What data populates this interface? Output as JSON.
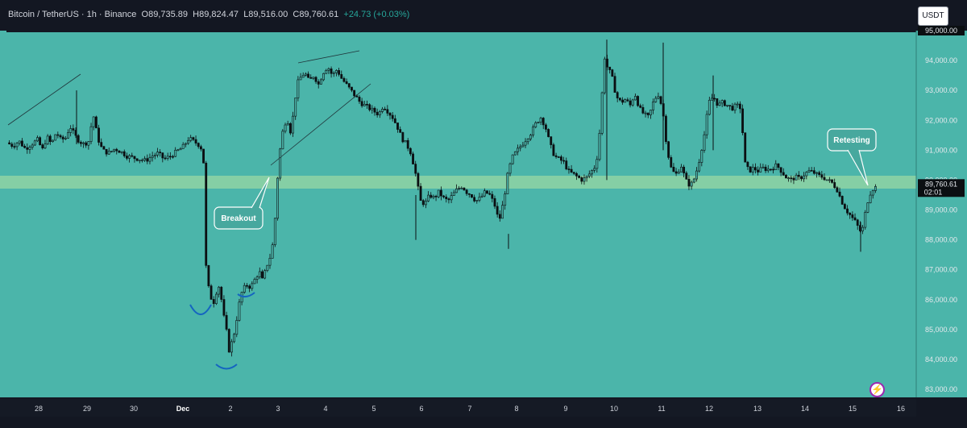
{
  "legend": {
    "symbol": "Bitcoin / TetherUS",
    "interval": "1h",
    "exchange": "Binance",
    "open": "O89,735.89",
    "high": "H89,824.47",
    "low": "L89,516.00",
    "close": "C89,760.61",
    "change": "+24.73 (+0.03%)"
  },
  "currency_button": "USDT",
  "price_axis": {
    "ticks": [
      "95,000.00",
      "94,000.00",
      "93,000.00",
      "92,000.00",
      "91,000.00",
      "90,000.00",
      "89,000.00",
      "88,000.00",
      "87,000.00",
      "86,000.00",
      "85,000.00",
      "84,000.00",
      "83,000.00"
    ],
    "current_price": "89,760.61",
    "countdown": "02:01",
    "highlight_tick": "95,000.00"
  },
  "time_axis": {
    "ticks": [
      "28",
      "29",
      "30",
      "Dec",
      "2",
      "3",
      "4",
      "5",
      "6",
      "7",
      "8",
      "9",
      "10",
      "11",
      "12",
      "13",
      "14",
      "15",
      "16"
    ]
  },
  "annotations": {
    "breakout": "Breakout",
    "retesting": "Retesting"
  },
  "flash_icon": "lightning-icon",
  "colors": {
    "background": "#4bb5aa",
    "zone": "#8fd3a5",
    "candle": "#000000",
    "curve": "#1565c0"
  },
  "chart_data": {
    "type": "candlestick",
    "title": "",
    "xlabel": "",
    "ylabel": "",
    "ylim": [
      82700,
      95000
    ],
    "grid": false,
    "x_labels": [
      "28",
      "29",
      "30",
      "Dec",
      "2",
      "3",
      "4",
      "5",
      "6",
      "7",
      "8",
      "9",
      "10",
      "11",
      "12",
      "13",
      "14",
      "15",
      "16"
    ],
    "support_zone": [
      89750,
      90200
    ],
    "close_path": [
      [
        0,
        91250
      ],
      [
        4,
        91150
      ],
      [
        8,
        91300
      ],
      [
        12,
        91050
      ],
      [
        16,
        91200
      ],
      [
        20,
        91350
      ],
      [
        23,
        91000
      ],
      [
        26,
        91450
      ],
      [
        29,
        91200
      ],
      [
        32,
        91600
      ],
      [
        35,
        91350
      ],
      [
        38,
        91400
      ],
      [
        41,
        91800
      ],
      [
        44,
        91500
      ],
      [
        47,
        91300
      ],
      [
        50,
        91200
      ],
      [
        53,
        91300
      ],
      [
        56,
        92200
      ],
      [
        59,
        91400
      ],
      [
        62,
        91000
      ],
      [
        66,
        90900
      ],
      [
        70,
        91050
      ],
      [
        74,
        90950
      ],
      [
        78,
        90800
      ],
      [
        82,
        90750
      ],
      [
        86,
        90700
      ],
      [
        90,
        90650
      ],
      [
        94,
        90800
      ],
      [
        98,
        90900
      ],
      [
        102,
        90700
      ],
      [
        106,
        90800
      ],
      [
        110,
        90950
      ],
      [
        114,
        91100
      ],
      [
        118,
        91400
      ],
      [
        121,
        91300
      ],
      [
        124,
        91200
      ],
      [
        127,
        91000
      ],
      [
        128,
        90200
      ],
      [
        129,
        87200
      ],
      [
        130,
        86600
      ],
      [
        132,
        86100
      ],
      [
        134,
        85900
      ],
      [
        136,
        86300
      ],
      [
        138,
        86500
      ],
      [
        140,
        85600
      ],
      [
        142,
        85100
      ],
      [
        144,
        84300
      ],
      [
        146,
        84600
      ],
      [
        148,
        85000
      ],
      [
        150,
        85700
      ],
      [
        152,
        86200
      ],
      [
        154,
        86400
      ],
      [
        156,
        86500
      ],
      [
        158,
        86400
      ],
      [
        160,
        86600
      ],
      [
        162,
        86800
      ],
      [
        164,
        86900
      ],
      [
        166,
        86600
      ],
      [
        168,
        87100
      ],
      [
        170,
        87300
      ],
      [
        172,
        87700
      ],
      [
        174,
        88800
      ],
      [
        176,
        90500
      ],
      [
        178,
        91400
      ],
      [
        180,
        91900
      ],
      [
        182,
        92000
      ],
      [
        184,
        91600
      ],
      [
        186,
        92300
      ],
      [
        188,
        93200
      ],
      [
        190,
        93400
      ],
      [
        193,
        93600
      ],
      [
        196,
        93300
      ],
      [
        199,
        93500
      ],
      [
        202,
        93200
      ],
      [
        205,
        93600
      ],
      [
        208,
        93800
      ],
      [
        211,
        93500
      ],
      [
        214,
        93700
      ],
      [
        217,
        93400
      ],
      [
        220,
        93200
      ],
      [
        223,
        93000
      ],
      [
        226,
        92800
      ],
      [
        229,
        92600
      ],
      [
        232,
        92500
      ],
      [
        235,
        92400
      ],
      [
        238,
        92300
      ],
      [
        241,
        92200
      ],
      [
        244,
        92500
      ],
      [
        247,
        92300
      ],
      [
        250,
        92100
      ],
      [
        253,
        91800
      ],
      [
        256,
        91400
      ],
      [
        259,
        91200
      ],
      [
        262,
        90900
      ],
      [
        265,
        90200
      ],
      [
        268,
        89300
      ],
      [
        271,
        89200
      ],
      [
        274,
        89500
      ],
      [
        277,
        89400
      ],
      [
        280,
        89600
      ],
      [
        283,
        89400
      ],
      [
        286,
        89300
      ],
      [
        289,
        89500
      ],
      [
        292,
        89700
      ],
      [
        295,
        89800
      ],
      [
        298,
        89600
      ],
      [
        301,
        89500
      ],
      [
        304,
        89300
      ],
      [
        307,
        89400
      ],
      [
        310,
        89600
      ],
      [
        313,
        89500
      ],
      [
        316,
        89200
      ],
      [
        319,
        88600
      ],
      [
        322,
        89300
      ],
      [
        325,
        90300
      ],
      [
        328,
        90800
      ],
      [
        331,
        91000
      ],
      [
        334,
        91200
      ],
      [
        337,
        91400
      ],
      [
        340,
        91600
      ],
      [
        343,
        91900
      ],
      [
        346,
        92100
      ],
      [
        349,
        91800
      ],
      [
        352,
        91200
      ],
      [
        355,
        90800
      ],
      [
        358,
        90700
      ],
      [
        361,
        90600
      ],
      [
        364,
        90300
      ],
      [
        367,
        90200
      ],
      [
        370,
        90100
      ],
      [
        373,
        90000
      ],
      [
        376,
        90100
      ],
      [
        379,
        90300
      ],
      [
        382,
        90500
      ],
      [
        385,
        92000
      ],
      [
        387,
        94200
      ],
      [
        389,
        93800
      ],
      [
        392,
        93500
      ],
      [
        395,
        92800
      ],
      [
        398,
        92600
      ],
      [
        401,
        92700
      ],
      [
        404,
        92500
      ],
      [
        407,
        92900
      ],
      [
        410,
        92400
      ],
      [
        413,
        92200
      ],
      [
        416,
        92100
      ],
      [
        419,
        92600
      ],
      [
        422,
        92900
      ],
      [
        425,
        92400
      ],
      [
        428,
        91000
      ],
      [
        431,
        90300
      ],
      [
        434,
        90200
      ],
      [
        437,
        90500
      ],
      [
        440,
        90000
      ],
      [
        443,
        89800
      ],
      [
        446,
        90100
      ],
      [
        449,
        90700
      ],
      [
        452,
        91500
      ],
      [
        455,
        92600
      ],
      [
        458,
        92800
      ],
      [
        461,
        92500
      ],
      [
        464,
        92600
      ],
      [
        467,
        92500
      ],
      [
        470,
        92400
      ],
      [
        473,
        92500
      ],
      [
        476,
        92400
      ],
      [
        478,
        90600
      ],
      [
        481,
        90300
      ],
      [
        484,
        90400
      ],
      [
        487,
        90300
      ],
      [
        490,
        90400
      ],
      [
        493,
        90350
      ],
      [
        496,
        90400
      ],
      [
        499,
        90500
      ],
      [
        502,
        90300
      ],
      [
        505,
        90100
      ],
      [
        508,
        90000
      ],
      [
        511,
        90100
      ],
      [
        514,
        90050
      ],
      [
        517,
        90200
      ],
      [
        520,
        90300
      ],
      [
        523,
        90250
      ],
      [
        526,
        90150
      ],
      [
        529,
        90100
      ],
      [
        532,
        90000
      ],
      [
        535,
        89900
      ],
      [
        538,
        89700
      ],
      [
        541,
        89300
      ],
      [
        544,
        89000
      ],
      [
        547,
        88800
      ],
      [
        550,
        88600
      ],
      [
        553,
        88300
      ],
      [
        555,
        88400
      ],
      [
        557,
        89100
      ],
      [
        559,
        89500
      ],
      [
        561,
        89700
      ],
      [
        563,
        89760
      ]
    ]
  }
}
